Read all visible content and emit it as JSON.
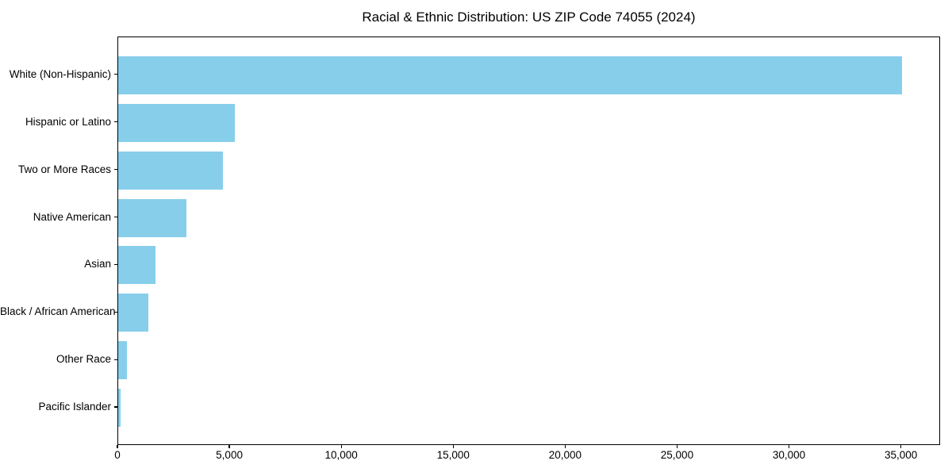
{
  "chart_data": {
    "type": "bar",
    "orientation": "horizontal",
    "title": "Racial & Ethnic Distribution: US ZIP Code 74055 (2024)",
    "xlabel": "",
    "ylabel": "",
    "categories": [
      "White (Non-Hispanic)",
      "Hispanic or Latino",
      "Two or More Races",
      "Native American",
      "Asian",
      "Black / African American",
      "Other Race",
      "Pacific Islander"
    ],
    "values": [
      35000,
      5200,
      4670,
      3050,
      1660,
      1350,
      380,
      120
    ],
    "xlim": [
      0,
      36750
    ],
    "xticks": [
      0,
      5000,
      10000,
      15000,
      20000,
      25000,
      30000,
      35000
    ],
    "xtick_labels": [
      "0",
      "5,000",
      "10,000",
      "15,000",
      "20,000",
      "25,000",
      "30,000",
      "35,000"
    ],
    "bar_color": "#87CEEB",
    "axis_color": "#000000",
    "grid": false,
    "legend": null
  }
}
